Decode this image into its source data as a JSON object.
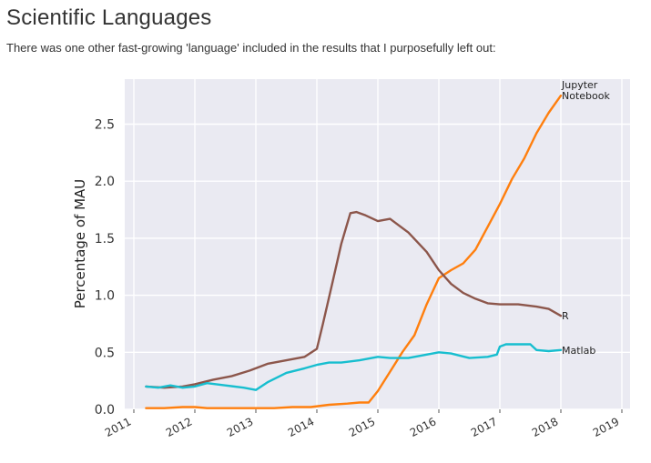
{
  "page": {
    "title": "Scientific Languages",
    "subtitle": "There was one other fast-growing 'language' included in the results that I purposefully left out:"
  },
  "chart_data": {
    "type": "line",
    "title": "",
    "xlabel": "",
    "ylabel": "Percentage of MAU",
    "xlim": [
      2011,
      2019
    ],
    "ylim": [
      0,
      2.8
    ],
    "x_ticks": [
      "2011",
      "2012",
      "2013",
      "2014",
      "2015",
      "2016",
      "2017",
      "2018",
      "2019"
    ],
    "y_ticks": [
      "0.0",
      "0.5",
      "1.0",
      "1.5",
      "2.0",
      "2.5"
    ],
    "grid": true,
    "background": "#eaeaf2",
    "legend": "end-of-line labels",
    "series": [
      {
        "name": "Jupyter Notebook",
        "label_lines": [
          "Jupyter",
          "Notebook"
        ],
        "color": "#ff7f0e",
        "x": [
          2011.2,
          2011.5,
          2011.8,
          2012.0,
          2012.2,
          2012.5,
          2012.8,
          2013.0,
          2013.3,
          2013.6,
          2013.9,
          2014.2,
          2014.5,
          2014.7,
          2014.85,
          2015.0,
          2015.2,
          2015.4,
          2015.6,
          2015.8,
          2016.0,
          2016.2,
          2016.4,
          2016.6,
          2016.8,
          2017.0,
          2017.2,
          2017.4,
          2017.6,
          2017.8,
          2018.0
        ],
        "y": [
          0.01,
          0.01,
          0.02,
          0.02,
          0.01,
          0.01,
          0.01,
          0.01,
          0.01,
          0.02,
          0.02,
          0.04,
          0.05,
          0.06,
          0.06,
          0.16,
          0.33,
          0.5,
          0.65,
          0.92,
          1.15,
          1.22,
          1.28,
          1.4,
          1.6,
          1.8,
          2.02,
          2.2,
          2.42,
          2.6,
          2.75
        ]
      },
      {
        "name": "R",
        "label_lines": [
          "R"
        ],
        "color": "#8c564b",
        "x": [
          2011.2,
          2011.5,
          2011.8,
          2012.0,
          2012.3,
          2012.6,
          2012.9,
          2013.2,
          2013.5,
          2013.8,
          2014.0,
          2014.1,
          2014.25,
          2014.4,
          2014.55,
          2014.65,
          2014.8,
          2015.0,
          2015.2,
          2015.5,
          2015.8,
          2016.0,
          2016.2,
          2016.4,
          2016.6,
          2016.8,
          2017.0,
          2017.3,
          2017.6,
          2017.8,
          2018.0
        ],
        "y": [
          0.2,
          0.19,
          0.2,
          0.22,
          0.26,
          0.29,
          0.34,
          0.4,
          0.43,
          0.46,
          0.53,
          0.75,
          1.1,
          1.45,
          1.72,
          1.73,
          1.7,
          1.65,
          1.67,
          1.55,
          1.38,
          1.22,
          1.1,
          1.02,
          0.97,
          0.93,
          0.92,
          0.92,
          0.9,
          0.88,
          0.82
        ]
      },
      {
        "name": "Matlab",
        "label_lines": [
          "Matlab"
        ],
        "color": "#17becf",
        "x": [
          2011.2,
          2011.4,
          2011.6,
          2011.8,
          2012.0,
          2012.2,
          2012.5,
          2012.8,
          2013.0,
          2013.2,
          2013.5,
          2013.8,
          2014.0,
          2014.2,
          2014.4,
          2014.7,
          2015.0,
          2015.2,
          2015.5,
          2015.8,
          2016.0,
          2016.2,
          2016.5,
          2016.8,
          2016.95,
          2017.0,
          2017.1,
          2017.3,
          2017.5,
          2017.6,
          2017.8,
          2018.0
        ],
        "y": [
          0.2,
          0.19,
          0.21,
          0.19,
          0.2,
          0.23,
          0.21,
          0.19,
          0.17,
          0.24,
          0.32,
          0.36,
          0.39,
          0.41,
          0.41,
          0.43,
          0.46,
          0.45,
          0.45,
          0.48,
          0.5,
          0.49,
          0.45,
          0.46,
          0.48,
          0.55,
          0.57,
          0.57,
          0.57,
          0.52,
          0.51,
          0.52
        ]
      }
    ]
  }
}
